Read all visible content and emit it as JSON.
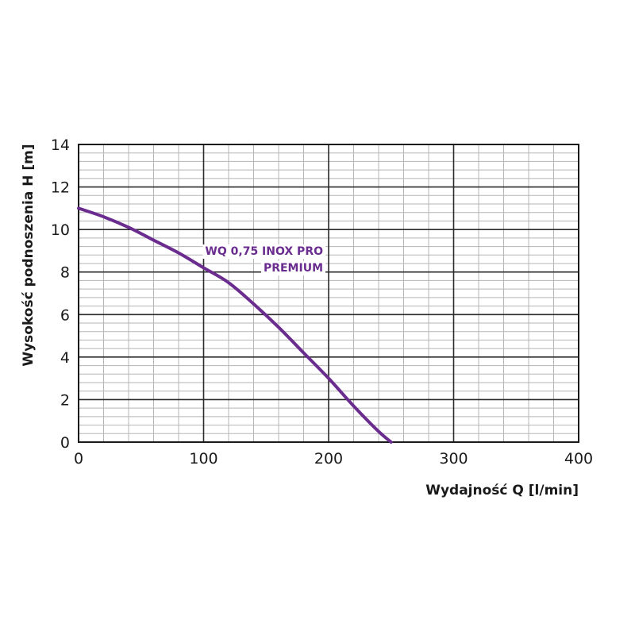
{
  "chart_data": {
    "type": "line",
    "title": "",
    "xlabel": "Wydajność Q [l/min]",
    "ylabel": "Wysokość podnoszenia H [m]",
    "xlim": [
      0,
      400
    ],
    "ylim": [
      0,
      14
    ],
    "x_ticks": [
      0,
      100,
      200,
      300,
      400
    ],
    "y_ticks": [
      0,
      2,
      4,
      6,
      8,
      10,
      12,
      14
    ],
    "x_tick_labels": [
      "0",
      "100",
      "200",
      "300",
      "400"
    ],
    "y_tick_labels": [
      "0",
      "2",
      "4",
      "6",
      "8",
      "10",
      "12",
      "14"
    ],
    "x_major_step": 100,
    "x_minor_step": 20,
    "y_major_step": 2,
    "y_minor_step": 0.4,
    "grid": true,
    "series": [
      {
        "name_lines": [
          "WQ 0,75 INOX PRO",
          "PREMIUM"
        ],
        "color": "#6a2c8e",
        "x": [
          0,
          20,
          40,
          60,
          80,
          100,
          120,
          140,
          160,
          180,
          200,
          220,
          240,
          250
        ],
        "y": [
          11.0,
          10.6,
          10.1,
          9.5,
          8.9,
          8.2,
          7.5,
          6.5,
          5.4,
          4.2,
          3.0,
          1.7,
          0.5,
          0.0
        ]
      }
    ]
  }
}
